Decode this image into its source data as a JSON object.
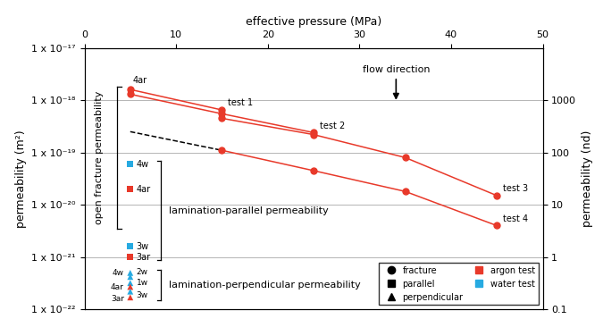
{
  "chart_data": {
    "type": "line",
    "x_label": "effective pressure (MPa)",
    "y_label": "permeability (m²)",
    "y2_label": "permeability (nd)",
    "xlim": [
      0,
      50
    ],
    "xticks": [
      0,
      10,
      20,
      30,
      40,
      50
    ],
    "ylim": [
      1e-22,
      1e-17
    ],
    "yticks": [
      {
        "value": 1e-22,
        "label": "1 x 10⁻²²"
      },
      {
        "value": 1e-21,
        "label": "1 x 10⁻²¹"
      },
      {
        "value": 1e-20,
        "label": "1 x 10⁻²⁰"
      },
      {
        "value": 1e-19,
        "label": "1 x 10⁻¹⁹"
      },
      {
        "value": 1e-18,
        "label": "1 x 10⁻¹⁸"
      },
      {
        "value": 1e-17,
        "label": "1 x 10⁻¹⁷"
      }
    ],
    "y2lim": [
      0.1,
      10000
    ],
    "y2ticks": [
      0.1,
      1,
      10,
      100,
      1000
    ],
    "log": "y",
    "grid": true,
    "legend": "lower right",
    "legend_items": [
      {
        "name": "fracture",
        "marker": "circle",
        "color": "#000000"
      },
      {
        "name": "parallel",
        "marker": "square",
        "color": "#000000"
      },
      {
        "name": "perpendicular",
        "marker": "triangle",
        "color": "#000000"
      },
      {
        "name": "argon test",
        "marker": "square",
        "color": "#e8392a"
      },
      {
        "name": "water test",
        "marker": "square",
        "color": "#27aae1"
      }
    ],
    "group_labels": {
      "fracture": "open fracture permeability",
      "parallel": "lamination-parallel permeability",
      "perpendicular": "lamination-perpendicular permeability"
    },
    "annotations": [
      "flow direction"
    ],
    "series": [
      {
        "name": "test 1",
        "group": "fracture",
        "type": "line",
        "marker": "circle",
        "line_style": "solid",
        "color": "#e8392a",
        "x": [
          5,
          15
        ],
        "values": [
          1.6e-18,
          6.5e-19
        ],
        "point_labels": [
          "4ar",
          null
        ]
      },
      {
        "name": "test 2",
        "group": "fracture",
        "type": "line",
        "marker": "circle",
        "line_style": "solid",
        "color": "#e8392a",
        "x": [
          5,
          15,
          25
        ],
        "values": [
          1.3e-18,
          5.5e-19,
          2.4e-19
        ]
      },
      {
        "name": "test 3",
        "group": "fracture",
        "type": "line",
        "marker": "circle",
        "line_style": "solid",
        "color": "#e8392a",
        "x": [
          15,
          25,
          35,
          45
        ],
        "values": [
          4.5e-19,
          2.2e-19,
          8e-20,
          1.5e-20
        ]
      },
      {
        "type": "line",
        "group": "fracture",
        "marker": "none",
        "line_style": "dashed",
        "color": "#000000",
        "x": [
          5,
          15
        ],
        "values": [
          2.5e-19,
          1.1e-19
        ]
      },
      {
        "name": "test 4",
        "group": "fracture",
        "type": "line",
        "marker": "circle",
        "line_style": "solid",
        "color": "#e8392a",
        "x": [
          15,
          25,
          35,
          45
        ],
        "values": [
          1.1e-19,
          4.5e-20,
          1.8e-20,
          4e-21
        ]
      },
      {
        "type": "scatter",
        "group": "parallel",
        "marker": "square",
        "x": [
          5,
          5,
          5,
          5
        ],
        "values": [
          6e-20,
          2e-20,
          1.6e-21,
          1e-21
        ],
        "colors": [
          "#27aae1",
          "#e8392a",
          "#27aae1",
          "#e8392a"
        ],
        "point_labels": [
          "4w",
          "4ar",
          "3w",
          "3ar"
        ]
      },
      {
        "type": "scatter",
        "group": "perpendicular",
        "marker": "triangle",
        "x": [
          5,
          5,
          5,
          5,
          5,
          5
        ],
        "values": [
          5e-22,
          4.2e-22,
          3.2e-22,
          2.7e-22,
          2.2e-22,
          1.7e-22
        ],
        "colors": [
          "#27aae1",
          "#27aae1",
          "#27aae1",
          "#e8392a",
          "#27aae1",
          "#e8392a"
        ],
        "point_labels": [
          "4w",
          "2w",
          "1w",
          "4ar",
          "3w",
          "3ar"
        ]
      }
    ]
  }
}
